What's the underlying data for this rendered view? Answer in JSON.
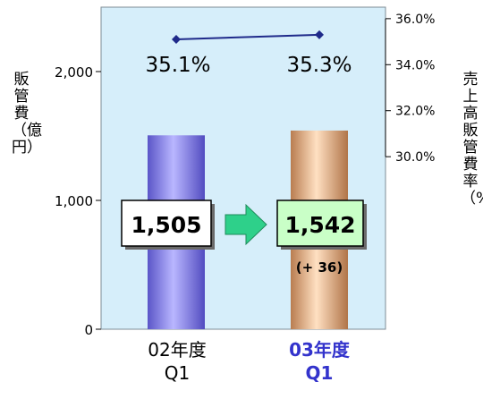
{
  "chart_data": {
    "type": "bar",
    "categories": [
      {
        "year": "02年度",
        "quarter": "Q1"
      },
      {
        "year": "03年度",
        "quarter": "Q1"
      }
    ],
    "series": [
      {
        "name": "販管費（億円）",
        "values": [
          1505,
          1542
        ]
      },
      {
        "name": "売上高販管費率（%）",
        "values": [
          35.1,
          35.3
        ]
      }
    ],
    "value_labels": [
      "1,505",
      "1,542"
    ],
    "rate_labels": [
      "35.1%",
      "35.3%"
    ],
    "change_label": "(+ 36)",
    "ylabel_left": "販管費（億円）",
    "ylabel_right": "売上高販管費率（%）",
    "yticks_left": [
      "0",
      "1,000",
      "2,000"
    ],
    "yticks_right": [
      "30.0%",
      "32.0%",
      "34.0%",
      "36.0%"
    ],
    "ylim_left": [
      0,
      2500
    ],
    "ylim_right": [
      22.5,
      36.5
    ],
    "colors": {
      "plot_bg": "#d6eefa",
      "bar_02": "#8b85f0",
      "bar_03": "#e6b78f",
      "line": "#1f2a8a",
      "arrow": "#2ed08a",
      "label_02_bg": "#ffffff",
      "label_03_bg": "#c9ffc7",
      "highlight_text": "#3333cc"
    }
  }
}
